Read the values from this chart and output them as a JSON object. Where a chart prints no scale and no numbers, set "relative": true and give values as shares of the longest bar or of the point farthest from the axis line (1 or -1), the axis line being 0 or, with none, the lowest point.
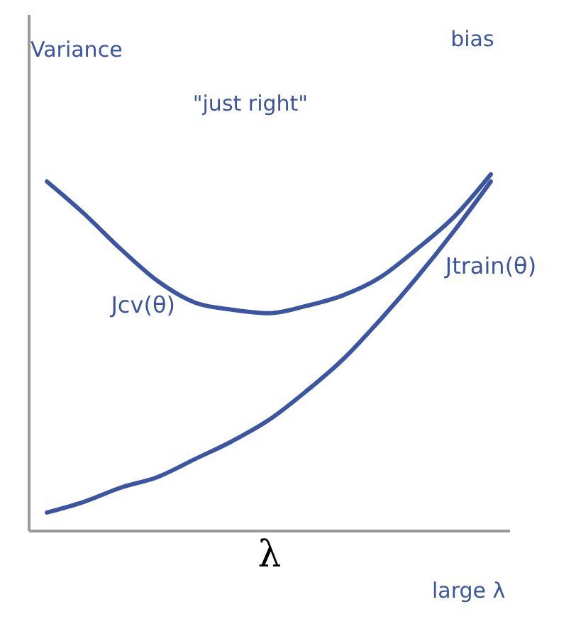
{
  "chart_data": {
    "type": "line",
    "relative": true,
    "xlabel": "λ",
    "categories": [
      null,
      null,
      null,
      null,
      null,
      null,
      null,
      null,
      null,
      null,
      null,
      null,
      null
    ],
    "series": [
      {
        "name": "Jcv(θ)",
        "color": "#3b55a0",
        "values": [
          0.98,
          0.89,
          0.79,
          0.7,
          0.64,
          0.62,
          0.61,
          0.63,
          0.66,
          0.71,
          0.79,
          0.88,
          1.0
        ]
      },
      {
        "name": "Jtrain(θ)",
        "color": "#3b55a0",
        "values": [
          0.05,
          0.08,
          0.12,
          0.15,
          0.2,
          0.25,
          0.31,
          0.39,
          0.48,
          0.59,
          0.71,
          0.84,
          0.98
        ]
      }
    ],
    "annotations": [
      "Variance",
      "bias",
      "\"just right\"",
      "large λ"
    ],
    "grid": false,
    "legend": false,
    "marker": "none",
    "line_style": "solid"
  }
}
